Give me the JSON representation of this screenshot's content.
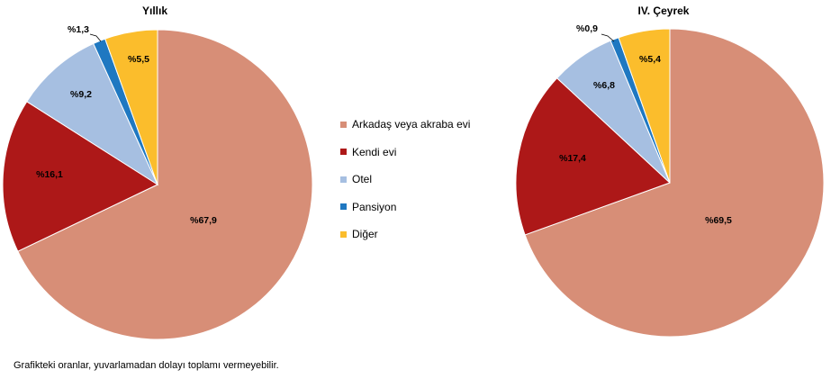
{
  "chart_data": [
    {
      "type": "pie",
      "title": "Yıllık",
      "slices": [
        {
          "name": "Arkadaş veya akraba evi",
          "value": 67.9,
          "label": "%67,9",
          "color": "#d78e77"
        },
        {
          "name": "Kendi evi",
          "value": 16.1,
          "label": "%16,1",
          "color": "#ad1818"
        },
        {
          "name": "Otel",
          "value": 9.2,
          "label": "%9,2",
          "color": "#a6bfe1"
        },
        {
          "name": "Pansiyon",
          "value": 1.3,
          "label": "%1,3",
          "color": "#1f78c1"
        },
        {
          "name": "Diğer",
          "value": 5.5,
          "label": "%5,5",
          "color": "#fbbd2c"
        }
      ]
    },
    {
      "type": "pie",
      "title": "IV. Çeyrek",
      "slices": [
        {
          "name": "Arkadaş veya akraba evi",
          "value": 69.5,
          "label": "%69,5",
          "color": "#d78e77"
        },
        {
          "name": "Kendi evi",
          "value": 17.4,
          "label": "%17,4",
          "color": "#ad1818"
        },
        {
          "name": "Otel",
          "value": 6.8,
          "label": "%6,8",
          "color": "#a6bfe1"
        },
        {
          "name": "Pansiyon",
          "value": 0.9,
          "label": "%0,9",
          "color": "#1f78c1"
        },
        {
          "name": "Diğer",
          "value": 5.4,
          "label": "%5,4",
          "color": "#fbbd2c"
        }
      ]
    }
  ],
  "legend": {
    "items": [
      {
        "label": "Arkadaş veya akraba evi",
        "color": "#d78e77"
      },
      {
        "label": "Kendi evi",
        "color": "#ad1818"
      },
      {
        "label": "Otel",
        "color": "#a6bfe1"
      },
      {
        "label": "Pansiyon",
        "color": "#1f78c1"
      },
      {
        "label": "Diğer",
        "color": "#fbbd2c"
      }
    ]
  },
  "footnote": "Grafikteki oranlar, yuvarlamadan dolayı toplamı vermeyebilir."
}
